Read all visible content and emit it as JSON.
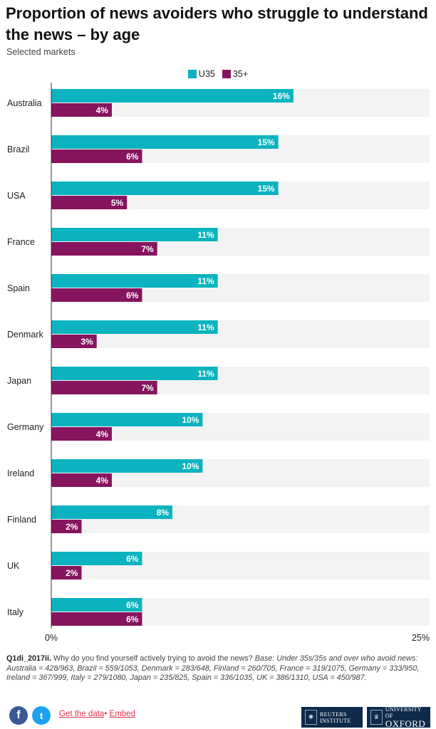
{
  "header": {
    "title": "Proportion of news avoiders who struggle to understand the news – by age",
    "subtitle": "Selected markets"
  },
  "legend": [
    {
      "label": "U35",
      "color": "#0ab3bf"
    },
    {
      "label": "35+",
      "color": "#86145e"
    }
  ],
  "chart_data": {
    "type": "bar",
    "orientation": "horizontal",
    "categories": [
      "Australia",
      "Brazil",
      "USA",
      "France",
      "Spain",
      "Denmark",
      "Japan",
      "Germany",
      "Ireland",
      "Finland",
      "UK",
      "Italy"
    ],
    "series": [
      {
        "name": "U35",
        "values": [
          16,
          15,
          15,
          11,
          11,
          11,
          11,
          10,
          10,
          8,
          6,
          6
        ],
        "color": "#0ab3bf"
      },
      {
        "name": "35+",
        "values": [
          4,
          6,
          5,
          7,
          6,
          3,
          7,
          4,
          4,
          2,
          2,
          6
        ],
        "color": "#86145e"
      }
    ],
    "value_suffix": "%",
    "xlim": [
      0,
      25
    ],
    "x_ticks": [
      "0%",
      "25%"
    ],
    "grid": false,
    "legend_position": "top-center",
    "row_band_color": "#f3f3f3"
  },
  "footnote": {
    "code": "Q1di_2017ii.",
    "question": " Why do you find yourself actively trying to avoid the news? ",
    "base": "Base: Under 35s/35s and over who avoid news: Australia = 428/963, Brazil = 559/1053, Denmark = 283/648, Finland = 260/705, France = 319/1075, Germany = 333/950, Ireland = 367/999, Italy = 279/1080, Japan = 235/825, Spain = 336/1035, UK = 386/1310, USA = 450/987."
  },
  "footer": {
    "facebook_icon": "f",
    "twitter_icon": "t",
    "get_data_label": "Get the data",
    "separator": "•",
    "embed_label": "Embed",
    "reuters_line1": "REUTERS",
    "reuters_line2": "INSTITUTE",
    "oxford_line1": "UNIVERSITY OF",
    "oxford_line2": "OXFORD"
  }
}
